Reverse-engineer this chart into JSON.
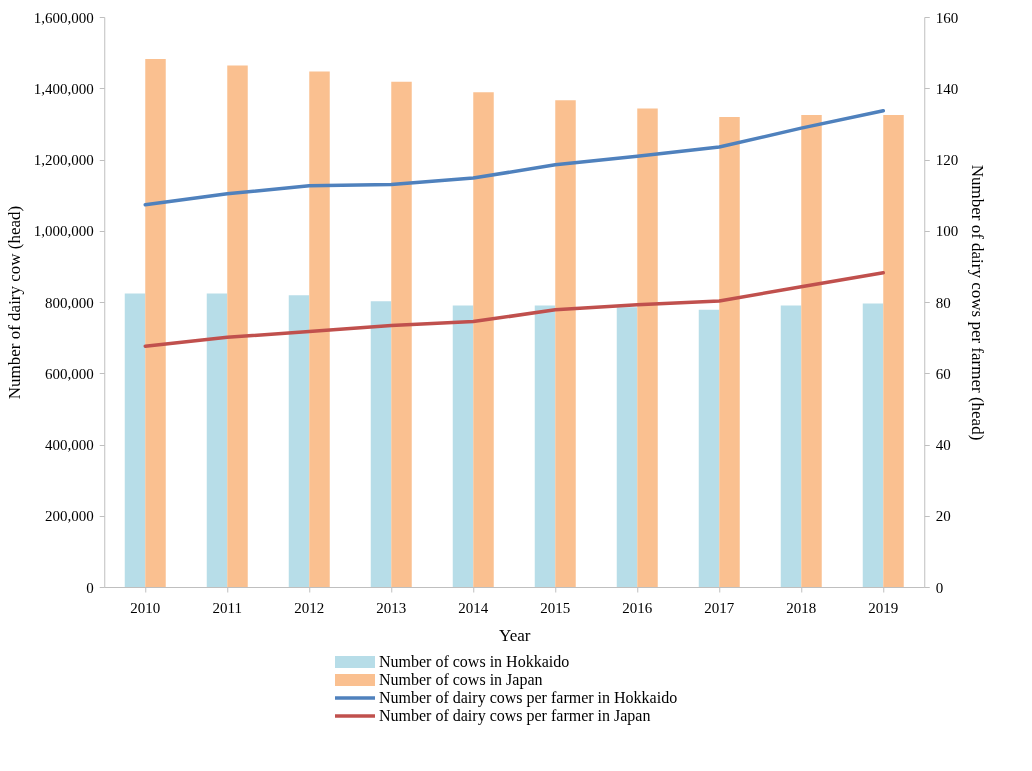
{
  "chart_data": {
    "type": "bar",
    "xlabel": "Year",
    "ylabel": "Number of dairy cow  (head)",
    "y2label": "Number of dairy cows per farmer (head)",
    "categories": [
      "2010",
      "2011",
      "2012",
      "2013",
      "2014",
      "2015",
      "2016",
      "2017",
      "2018",
      "2019"
    ],
    "series": [
      {
        "name": "Number of cows in Hokkaido",
        "color": "#b7dde8",
        "values": [
          824000,
          824000,
          819000,
          802000,
          790000,
          790000,
          785000,
          778000,
          790000,
          796000
        ]
      },
      {
        "name": "Number of cows in Japan",
        "color": "#fac090",
        "values": [
          1482000,
          1464000,
          1447000,
          1418000,
          1389000,
          1366000,
          1343000,
          1319000,
          1325000,
          1325000
        ]
      },
      {
        "name": "Number of dairy cows per farmer in Hokkaido",
        "type": "line",
        "axis": "y2",
        "color": "#4f81bd",
        "values": [
          107.3,
          110.4,
          112.6,
          113.0,
          114.8,
          118.5,
          120.9,
          123.5,
          128.8,
          133.7
        ]
      },
      {
        "name": "Number of dairy cows per farmer in Japan",
        "type": "line",
        "axis": "y2",
        "color": "#c0504d",
        "values": [
          67.6,
          70.1,
          71.7,
          73.4,
          74.5,
          77.8,
          79.2,
          80.3,
          84.3,
          88.2
        ]
      }
    ],
    "ylim": [
      0,
      1600000
    ],
    "yticks": [
      0,
      {
        "value": 200000,
        "label": "200,000"
      },
      {
        "value": 400000,
        "label": "400,000"
      },
      {
        "value": 600000,
        "label": "600,000"
      },
      {
        "value": 800000,
        "label": "800,000"
      },
      {
        "value": 1000000,
        "label": "1,000,000"
      },
      {
        "value": 1200000,
        "label": "1,200,000"
      },
      {
        "value": 1400000,
        "label": "1,400,000"
      },
      {
        "value": 1600000,
        "label": "1,600,000"
      }
    ],
    "y2lim": [
      0,
      160
    ],
    "y2ticks": [
      0,
      20,
      40,
      60,
      80,
      100,
      120,
      140,
      160
    ],
    "grid": false,
    "legend": "bottom",
    "marker": "none",
    "line_style": "solid"
  }
}
